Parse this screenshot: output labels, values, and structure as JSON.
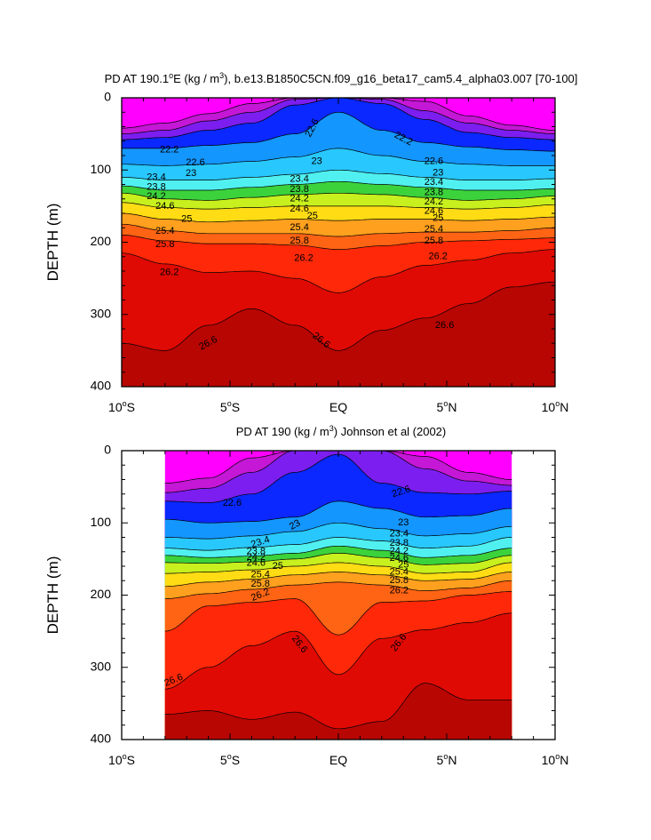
{
  "chart_data": [
    {
      "type": "contour",
      "title_main": "PD AT 190.1",
      "title_deg": "o",
      "title_mid": "E (kg / m",
      "title_exp": "3",
      "title_end": "), b.e13.B1850C5CN.f09_g16_beta17_cam5.4_alpha03.007 [70-100]",
      "ylabel": "DEPTH (m)",
      "xlim": [
        -10,
        10
      ],
      "ylim": [
        0,
        400
      ],
      "data_extent": [
        -10,
        10
      ],
      "x_ticks": [
        {
          "v": -10,
          "num": "10",
          "deg": "o",
          "hemi": "S"
        },
        {
          "v": -5,
          "num": "5",
          "deg": "o",
          "hemi": "S"
        },
        {
          "v": 0,
          "num": "EQ",
          "deg": "",
          "hemi": ""
        },
        {
          "v": 5,
          "num": "5",
          "deg": "o",
          "hemi": "N"
        },
        {
          "v": 10,
          "num": "10",
          "deg": "o",
          "hemi": "N"
        }
      ],
      "y_ticks": [
        "0",
        "100",
        "200",
        "300",
        "400"
      ],
      "y_tick_values": [
        0,
        100,
        200,
        300,
        400
      ],
      "contour_levels": [
        21.0,
        21.4,
        21.8,
        22.2,
        22.6,
        23.0,
        23.2,
        23.4,
        23.6,
        23.8,
        24.0,
        24.2,
        24.4,
        24.6,
        24.8,
        25.0,
        25.2,
        25.4,
        25.6,
        25.8,
        26.0,
        26.2,
        26.4,
        26.6,
        26.8
      ],
      "isopycnal_depths": {
        "x": [
          -10,
          -8,
          -6,
          -4,
          -2,
          0,
          2,
          4,
          6,
          8,
          10
        ],
        "levels": [
          {
            "sigma": 21.4,
            "depth": [
              42,
              35,
              22,
              8,
              0,
              0,
              0,
              5,
              25,
              38,
              45
            ]
          },
          {
            "sigma": 21.8,
            "depth": [
              50,
              45,
              32,
              20,
              2,
              0,
              2,
              18,
              35,
              45,
              50
            ]
          },
          {
            "sigma": 22.2,
            "depth": [
              58,
              55,
              45,
              35,
              10,
              0,
              8,
              30,
              48,
              55,
              58
            ]
          },
          {
            "sigma": 22.6,
            "depth": [
              70,
              70,
              66,
              62,
              50,
              20,
              45,
              62,
              68,
              72,
              74
            ]
          },
          {
            "sigma": 23.0,
            "depth": [
              92,
              94,
              92,
              88,
              82,
              70,
              80,
              88,
              92,
              94,
              94
            ]
          },
          {
            "sigma": 23.4,
            "depth": [
              110,
              114,
              114,
              110,
              106,
              100,
              105,
              110,
              114,
              114,
              112
            ]
          },
          {
            "sigma": 23.8,
            "depth": [
              122,
              128,
              128,
              124,
              120,
              116,
              120,
              124,
              128,
              128,
              126
            ]
          },
          {
            "sigma": 24.2,
            "depth": [
              132,
              140,
              142,
              138,
              134,
              132,
              134,
              138,
              142,
              140,
              136
            ]
          },
          {
            "sigma": 24.6,
            "depth": [
              145,
              152,
              154,
              152,
              150,
              150,
              150,
              152,
              154,
              152,
              148
            ]
          },
          {
            "sigma": 25.0,
            "depth": [
              160,
              168,
              172,
              170,
              168,
              170,
              168,
              168,
              170,
              168,
              165
            ]
          },
          {
            "sigma": 25.4,
            "depth": [
              175,
              184,
              188,
              188,
              188,
              192,
              188,
              186,
              186,
              184,
              180
            ]
          },
          {
            "sigma": 25.8,
            "depth": [
              190,
              198,
              202,
              202,
              204,
              210,
              205,
              200,
              198,
              196,
              194
            ]
          },
          {
            "sigma": 26.2,
            "depth": [
              215,
              230,
              242,
              240,
              250,
              270,
              248,
              232,
              225,
              215,
              210
            ]
          },
          {
            "sigma": 26.6,
            "depth": [
              340,
              350,
              315,
              292,
              315,
              350,
              322,
              305,
              285,
              262,
              255
            ]
          }
        ]
      },
      "labels": [
        {
          "text": "22.6",
          "x": -1.2,
          "y": 42,
          "angle": -62
        },
        {
          "text": "22.2",
          "x": 3.0,
          "y": 57,
          "angle": 28
        },
        {
          "text": "22.2",
          "x": -7.8,
          "y": 72,
          "angle": 0
        },
        {
          "text": "22.6",
          "x": -6.6,
          "y": 90,
          "angle": 0
        },
        {
          "text": "23",
          "x": -6.8,
          "y": 105,
          "angle": 0
        },
        {
          "text": "23",
          "x": -1.0,
          "y": 88,
          "angle": 0
        },
        {
          "text": "22.6",
          "x": 4.4,
          "y": 88,
          "angle": 0
        },
        {
          "text": "23",
          "x": 4.6,
          "y": 104,
          "angle": 0
        },
        {
          "text": "23.4",
          "x": -8.4,
          "y": 110,
          "angle": 0
        },
        {
          "text": "23.4",
          "x": -1.8,
          "y": 113,
          "angle": 0
        },
        {
          "text": "23.4",
          "x": 4.4,
          "y": 117,
          "angle": 0
        },
        {
          "text": "23.8",
          "x": -8.4,
          "y": 124,
          "angle": 0
        },
        {
          "text": "23.8",
          "x": -1.8,
          "y": 127,
          "angle": 0
        },
        {
          "text": "23.8",
          "x": 4.4,
          "y": 131,
          "angle": 0
        },
        {
          "text": "24.2",
          "x": -8.4,
          "y": 137,
          "angle": 0
        },
        {
          "text": "24.2",
          "x": -1.8,
          "y": 140,
          "angle": 0
        },
        {
          "text": "24.2",
          "x": 4.4,
          "y": 144,
          "angle": 0
        },
        {
          "text": "24.6",
          "x": -8.0,
          "y": 150,
          "angle": 0
        },
        {
          "text": "24.6",
          "x": -1.8,
          "y": 154,
          "angle": 0
        },
        {
          "text": "24.6",
          "x": 4.4,
          "y": 157,
          "angle": 0
        },
        {
          "text": "25",
          "x": -7.0,
          "y": 168,
          "angle": 0
        },
        {
          "text": "25",
          "x": -1.2,
          "y": 164,
          "angle": 0
        },
        {
          "text": "25",
          "x": 4.6,
          "y": 167,
          "angle": 0
        },
        {
          "text": "25.4",
          "x": -8.0,
          "y": 185,
          "angle": 0
        },
        {
          "text": "25.4",
          "x": -1.8,
          "y": 180,
          "angle": 0
        },
        {
          "text": "25.4",
          "x": 4.4,
          "y": 182,
          "angle": 0
        },
        {
          "text": "25.8",
          "x": -8.0,
          "y": 203,
          "angle": 0
        },
        {
          "text": "25.8",
          "x": -1.8,
          "y": 198,
          "angle": 0
        },
        {
          "text": "25.8",
          "x": 4.4,
          "y": 198,
          "angle": 0
        },
        {
          "text": "26.2",
          "x": -1.6,
          "y": 222,
          "angle": 0
        },
        {
          "text": "26.2",
          "x": -7.8,
          "y": 242,
          "angle": 0
        },
        {
          "text": "26.2",
          "x": 4.6,
          "y": 220,
          "angle": 0
        },
        {
          "text": "26.6",
          "x": -6.0,
          "y": 340,
          "angle": -28
        },
        {
          "text": "26.6",
          "x": -0.8,
          "y": 336,
          "angle": 38
        },
        {
          "text": "26.6",
          "x": 4.9,
          "y": 315,
          "angle": 0
        }
      ]
    },
    {
      "type": "contour",
      "title_main": "PD AT 190 (kg / m",
      "title_deg": "",
      "title_mid": "",
      "title_exp": "3",
      "title_end": ") Johnson et al (2002)",
      "ylabel": "DEPTH (m)",
      "xlim": [
        -10,
        10
      ],
      "ylim": [
        0,
        400
      ],
      "data_extent": [
        -8,
        8
      ],
      "x_ticks": [
        {
          "v": -10,
          "num": "10",
          "deg": "o",
          "hemi": "S"
        },
        {
          "v": -5,
          "num": "5",
          "deg": "o",
          "hemi": "S"
        },
        {
          "v": 0,
          "num": "EQ",
          "deg": "",
          "hemi": ""
        },
        {
          "v": 5,
          "num": "5",
          "deg": "o",
          "hemi": "N"
        },
        {
          "v": 10,
          "num": "10",
          "deg": "o",
          "hemi": "N"
        }
      ],
      "y_ticks": [
        "0",
        "100",
        "200",
        "300",
        "400"
      ],
      "y_tick_values": [
        0,
        100,
        200,
        300,
        400
      ],
      "contour_levels": [
        21.0,
        21.4,
        21.8,
        22.2,
        22.6,
        23.0,
        23.2,
        23.4,
        23.6,
        23.8,
        24.0,
        24.2,
        24.4,
        24.6,
        24.8,
        25.0,
        25.2,
        25.4,
        25.6,
        25.8,
        26.0,
        26.2,
        26.4,
        26.6,
        26.8
      ],
      "isopycnal_depths": {
        "x": [
          -8,
          -6,
          -4,
          -2,
          0,
          2,
          4,
          6,
          8
        ],
        "levels": [
          {
            "sigma": 21.8,
            "depth": [
              45,
              38,
              10,
              0,
              0,
              0,
              8,
              30,
              40
            ]
          },
          {
            "sigma": 22.2,
            "depth": [
              58,
              52,
              30,
              0,
              0,
              0,
              25,
              42,
              48
            ]
          },
          {
            "sigma": 22.6,
            "depth": [
              70,
              72,
              60,
              30,
              5,
              45,
              58,
              60,
              56
            ]
          },
          {
            "sigma": 23.0,
            "depth": [
              95,
              100,
              98,
              92,
              70,
              80,
              92,
              90,
              80
            ]
          },
          {
            "sigma": 23.4,
            "depth": [
              120,
              122,
              118,
              112,
              100,
              108,
              118,
              115,
              105
            ]
          },
          {
            "sigma": 23.8,
            "depth": [
              135,
              138,
              134,
              130,
              120,
              125,
              135,
              132,
              120
            ]
          },
          {
            "sigma": 24.2,
            "depth": [
              145,
              148,
              146,
              142,
              132,
              138,
              148,
              145,
              135
            ]
          },
          {
            "sigma": 24.6,
            "depth": [
              155,
              156,
              154,
              150,
              142,
              148,
              158,
              156,
              145
            ]
          },
          {
            "sigma": 25.0,
            "depth": [
              170,
              168,
              165,
              160,
              155,
              160,
              170,
              168,
              155
            ]
          },
          {
            "sigma": 25.4,
            "depth": [
              188,
              182,
              178,
              172,
              168,
              172,
              180,
              178,
              168
            ]
          },
          {
            "sigma": 25.8,
            "depth": [
              205,
              198,
              192,
              186,
              182,
              186,
              194,
              190,
              180
            ]
          },
          {
            "sigma": 26.2,
            "depth": [
              250,
              215,
              210,
              205,
              255,
              210,
              208,
              200,
              195
            ]
          },
          {
            "sigma": 26.6,
            "depth": [
              330,
              300,
              270,
              250,
              310,
              260,
              248,
              238,
              225
            ]
          },
          {
            "sigma": 26.8,
            "depth": [
              365,
              360,
              372,
              362,
              385,
              375,
              322,
              345,
              345
            ]
          }
        ]
      },
      "labels": [
        {
          "text": "22.6",
          "x": 2.9,
          "y": 57,
          "angle": -18
        },
        {
          "text": "22.6",
          "x": -4.9,
          "y": 73,
          "angle": 0
        },
        {
          "text": "23",
          "x": -2.0,
          "y": 103,
          "angle": -28
        },
        {
          "text": "23",
          "x": 3.0,
          "y": 100,
          "angle": 0
        },
        {
          "text": "23.4",
          "x": -3.6,
          "y": 127,
          "angle": -18
        },
        {
          "text": "23.8",
          "x": -3.8,
          "y": 140,
          "angle": 0
        },
        {
          "text": "24.2",
          "x": -3.8,
          "y": 148,
          "angle": 0
        },
        {
          "text": "24.6",
          "x": -3.8,
          "y": 156,
          "angle": 0
        },
        {
          "text": "25",
          "x": -2.8,
          "y": 160,
          "angle": 0
        },
        {
          "text": "23.4",
          "x": 2.8,
          "y": 115,
          "angle": 0
        },
        {
          "text": "23.8",
          "x": 2.8,
          "y": 128,
          "angle": 0
        },
        {
          "text": "24.2",
          "x": 2.8,
          "y": 139,
          "angle": 0
        },
        {
          "text": "24.6",
          "x": 2.8,
          "y": 149,
          "angle": 0
        },
        {
          "text": "25",
          "x": 3.0,
          "y": 158,
          "angle": 0
        },
        {
          "text": "25.4",
          "x": -3.6,
          "y": 172,
          "angle": 0
        },
        {
          "text": "25.8",
          "x": -3.6,
          "y": 185,
          "angle": 0
        },
        {
          "text": "26.2",
          "x": -3.6,
          "y": 200,
          "angle": -22
        },
        {
          "text": "25.4",
          "x": 2.8,
          "y": 168,
          "angle": 0
        },
        {
          "text": "25.8",
          "x": 2.8,
          "y": 180,
          "angle": 0
        },
        {
          "text": "26.2",
          "x": 2.8,
          "y": 194,
          "angle": 0
        },
        {
          "text": "26.6",
          "x": -1.8,
          "y": 268,
          "angle": 52
        },
        {
          "text": "26.6",
          "x": 2.8,
          "y": 266,
          "angle": -52
        },
        {
          "text": "26.6",
          "x": -7.6,
          "y": 318,
          "angle": -22
        }
      ]
    }
  ]
}
